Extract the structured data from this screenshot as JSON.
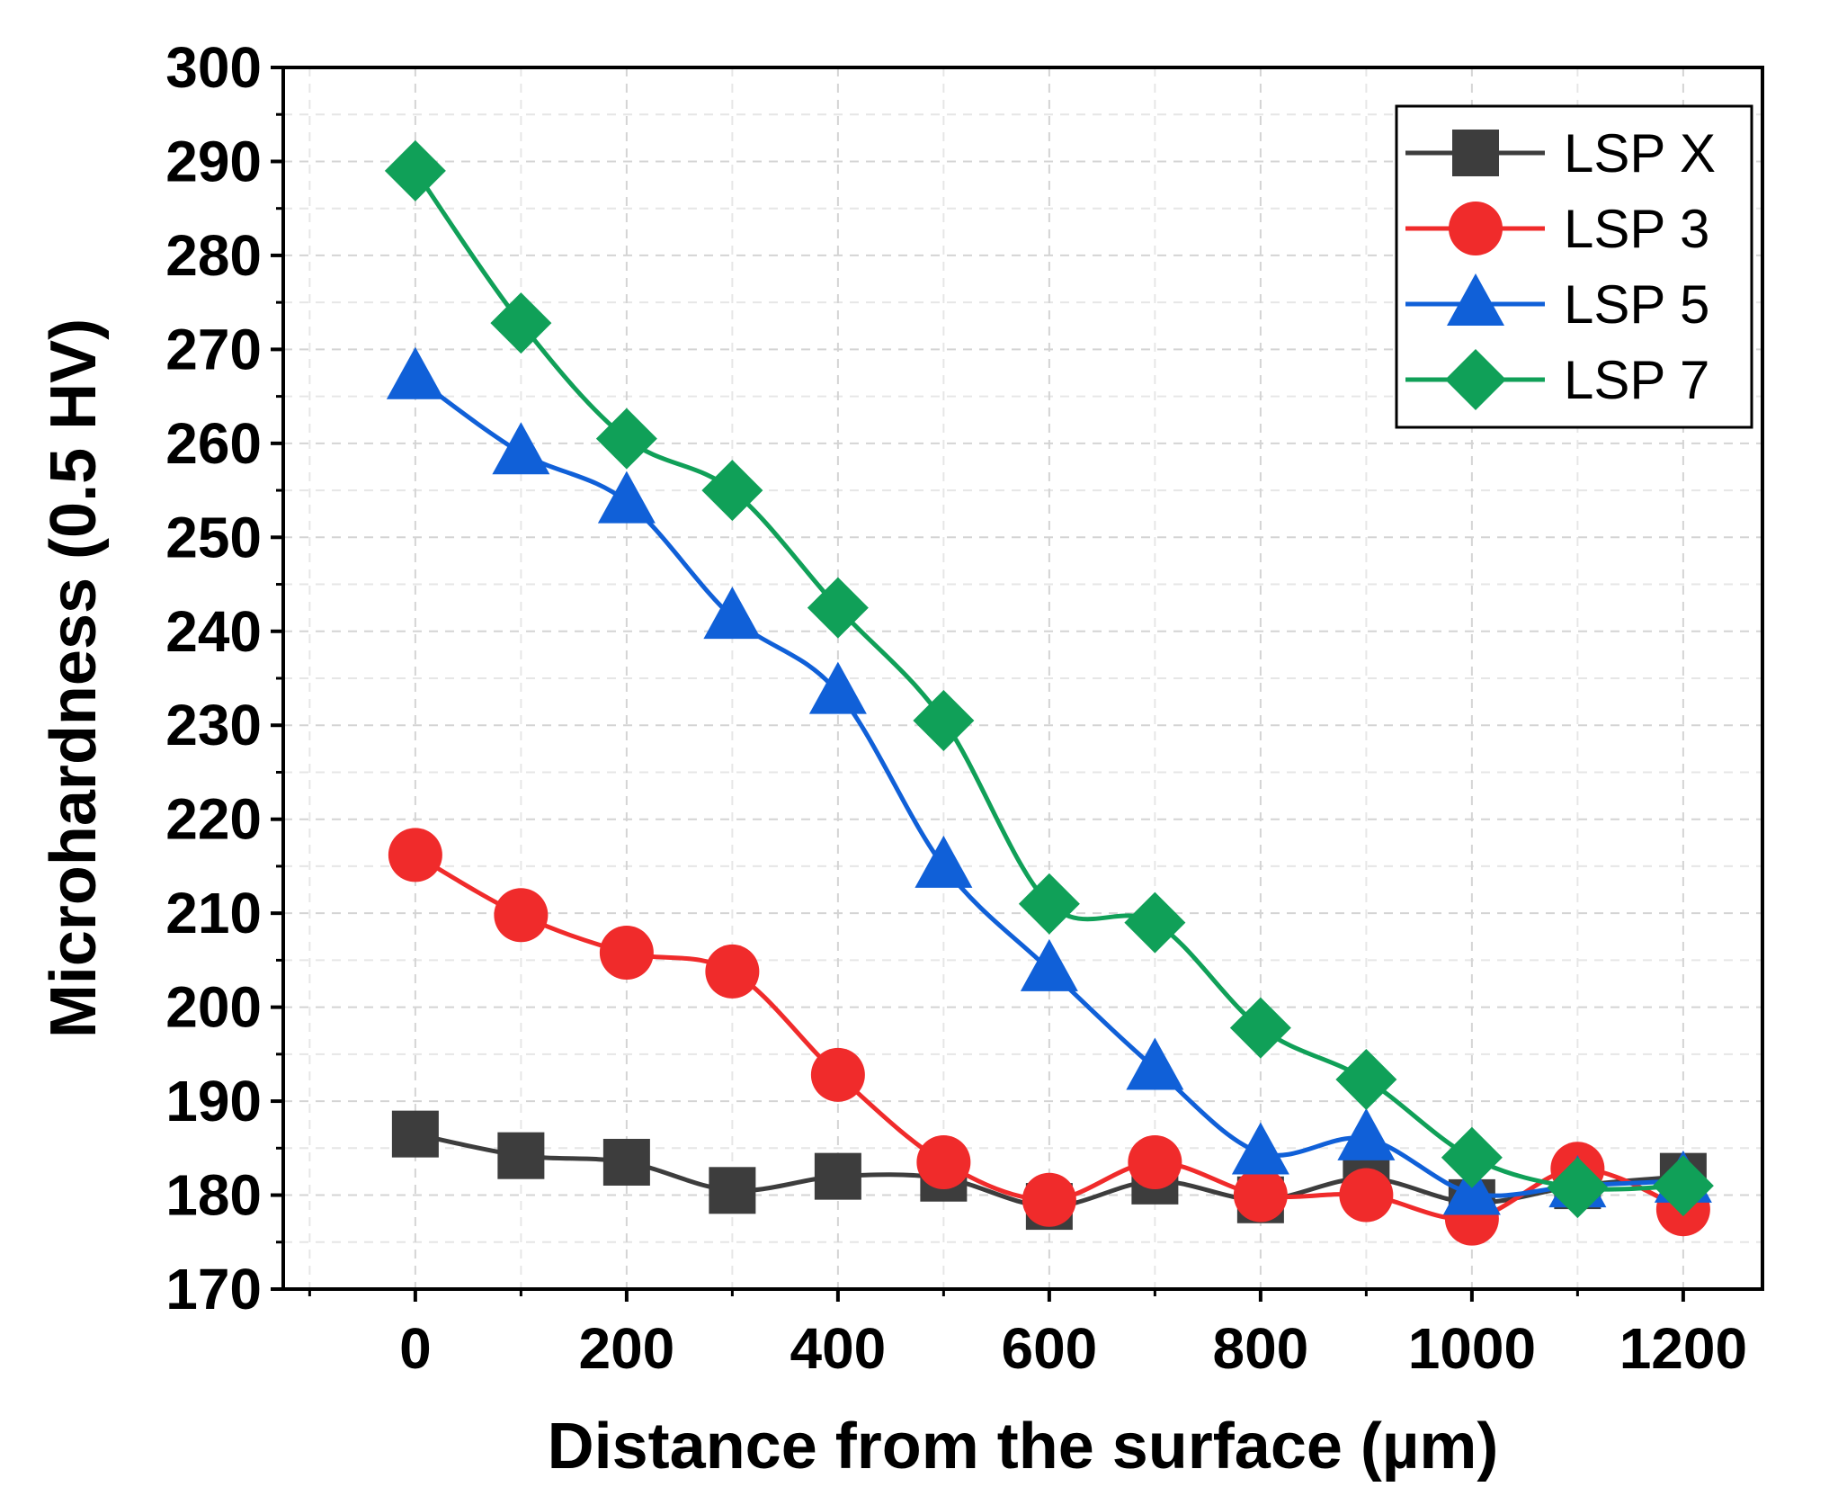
{
  "chart_data": {
    "type": "line",
    "title": "",
    "xlabel": "Distance from the surface (µm)",
    "ylabel": "Microhardness (0.5 HV)",
    "xlim": [
      -125,
      1275
    ],
    "ylim": [
      170,
      300
    ],
    "xticks": [
      0,
      200,
      400,
      600,
      800,
      1000,
      1200
    ],
    "yticks": [
      170,
      180,
      190,
      200,
      210,
      220,
      230,
      240,
      250,
      260,
      270,
      280,
      290,
      300
    ],
    "grid": true,
    "legend_position": "top-right",
    "x": [
      0,
      100,
      200,
      300,
      400,
      500,
      600,
      700,
      800,
      900,
      1000,
      1100,
      1200
    ],
    "series": [
      {
        "name": "LSP X",
        "color": "#3d3d3d",
        "marker": "square",
        "values": [
          186.5,
          184.2,
          183.5,
          180.5,
          182.0,
          181.8,
          178.8,
          181.5,
          179.5,
          181.8,
          179.2,
          181.0,
          182.0
        ]
      },
      {
        "name": "LSP 3",
        "color": "#f02b2b",
        "marker": "circle",
        "values": [
          216.2,
          209.8,
          205.8,
          203.8,
          192.8,
          183.5,
          179.5,
          183.5,
          180.0,
          180.0,
          177.5,
          182.8,
          178.5
        ]
      },
      {
        "name": "LSP 5",
        "color": "#1060d8",
        "marker": "triangle",
        "values": [
          267.0,
          259.0,
          253.8,
          241.5,
          233.5,
          215.0,
          204.0,
          193.5,
          184.5,
          186.0,
          180.2,
          181.0,
          181.5
        ]
      },
      {
        "name": "LSP 7",
        "color": "#10a058",
        "marker": "diamond",
        "values": [
          289.0,
          272.8,
          260.5,
          255.0,
          242.5,
          230.5,
          211.0,
          209.0,
          197.8,
          192.3,
          184.0,
          180.8,
          181.0
        ]
      }
    ]
  }
}
